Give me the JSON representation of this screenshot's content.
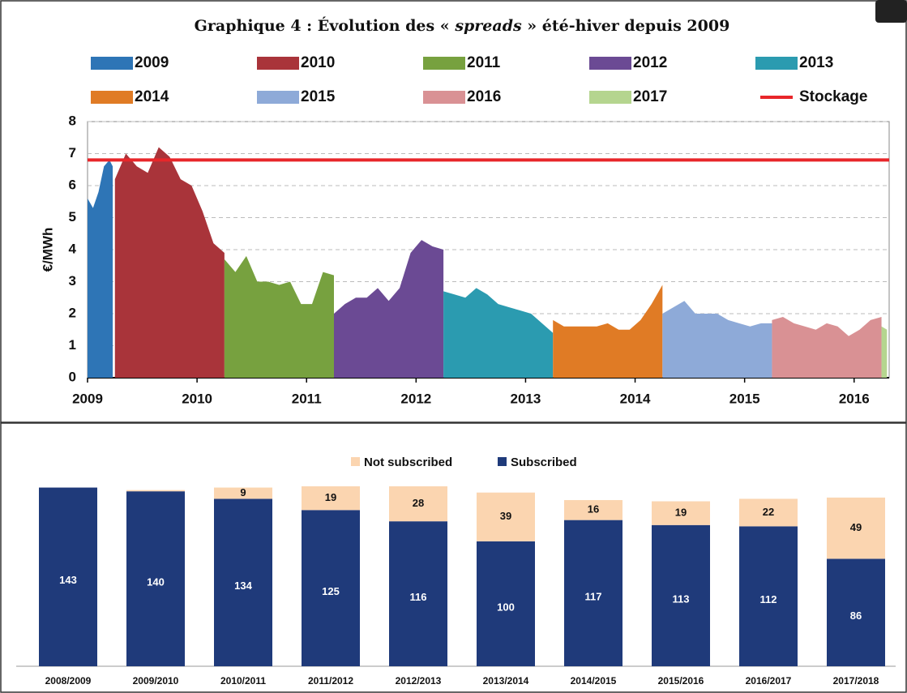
{
  "chart_data": [
    {
      "type": "area",
      "title_parts": [
        "Graphique 4 : Évolution des « ",
        "spreads",
        " » été-hiver depuis 2009"
      ],
      "y_label": "€/MWh",
      "xlim": [
        2009,
        2016.32
      ],
      "xticks": [
        2009,
        2010,
        2011,
        2012,
        2013,
        2014,
        2015,
        2016
      ],
      "ylim": [
        0,
        8
      ],
      "yticks": [
        0,
        1,
        2,
        3,
        4,
        5,
        6,
        7,
        8
      ],
      "grid": true,
      "series": [
        {
          "name": "2009",
          "color": "#2e75b6",
          "x": [
            2009.0,
            2009.05,
            2009.1,
            2009.15,
            2009.2,
            2009.23
          ],
          "values": [
            5.6,
            5.3,
            5.8,
            6.6,
            6.8,
            6.6
          ]
        },
        {
          "name": "2010",
          "color": "#a9343a",
          "x": [
            2009.25,
            2009.35,
            2009.45,
            2009.55,
            2009.65,
            2009.75,
            2009.85,
            2009.95,
            2010.05,
            2010.15,
            2010.25
          ],
          "values": [
            6.2,
            7.0,
            6.6,
            6.4,
            7.2,
            6.9,
            6.2,
            6.0,
            5.2,
            4.2,
            3.9
          ]
        },
        {
          "name": "2011",
          "color": "#77a13f",
          "x": [
            2010.25,
            2010.35,
            2010.45,
            2010.55,
            2010.65,
            2010.75,
            2010.85,
            2010.95,
            2011.05,
            2011.15,
            2011.25
          ],
          "values": [
            3.7,
            3.3,
            3.8,
            3.0,
            3.0,
            2.9,
            3.0,
            2.3,
            2.3,
            3.3,
            3.2
          ]
        },
        {
          "name": "2012",
          "color": "#6b4a94",
          "x": [
            2011.25,
            2011.35,
            2011.45,
            2011.55,
            2011.65,
            2011.75,
            2011.85,
            2011.95,
            2012.05,
            2012.15,
            2012.25
          ],
          "values": [
            2.0,
            2.3,
            2.5,
            2.5,
            2.8,
            2.4,
            2.8,
            3.9,
            4.3,
            4.1,
            4.0
          ]
        },
        {
          "name": "2013",
          "color": "#2b9bb0",
          "x": [
            2012.25,
            2012.35,
            2012.45,
            2012.55,
            2012.65,
            2012.75,
            2012.85,
            2012.95,
            2013.05,
            2013.15,
            2013.25
          ],
          "values": [
            2.7,
            2.6,
            2.5,
            2.8,
            2.6,
            2.3,
            2.2,
            2.1,
            2.0,
            1.7,
            1.4
          ]
        },
        {
          "name": "2014",
          "color": "#e07b25",
          "x": [
            2013.25,
            2013.35,
            2013.45,
            2013.55,
            2013.65,
            2013.75,
            2013.85,
            2013.95,
            2014.05,
            2014.15,
            2014.25
          ],
          "values": [
            1.8,
            1.6,
            1.6,
            1.6,
            1.6,
            1.7,
            1.5,
            1.5,
            1.8,
            2.3,
            2.9
          ]
        },
        {
          "name": "2015",
          "color": "#8eaad8",
          "x": [
            2014.25,
            2014.35,
            2014.45,
            2014.55,
            2014.65,
            2014.75,
            2014.85,
            2014.95,
            2015.05,
            2015.15,
            2015.25
          ],
          "values": [
            2.0,
            2.2,
            2.4,
            2.0,
            2.0,
            2.0,
            1.8,
            1.7,
            1.6,
            1.7,
            1.7
          ]
        },
        {
          "name": "2016",
          "color": "#d99194",
          "x": [
            2015.25,
            2015.35,
            2015.45,
            2015.55,
            2015.65,
            2015.75,
            2015.85,
            2015.95,
            2016.05,
            2016.15,
            2016.25
          ],
          "values": [
            1.8,
            1.9,
            1.7,
            1.6,
            1.5,
            1.7,
            1.6,
            1.3,
            1.5,
            1.8,
            1.9
          ]
        },
        {
          "name": "2017",
          "color": "#b5d58f",
          "x": [
            2016.25,
            2016.3
          ],
          "values": [
            1.6,
            1.5
          ]
        },
        {
          "name": "Stockage",
          "color": "#e8262a",
          "kind": "line",
          "x": [
            2009,
            2016.32
          ],
          "values": [
            6.8,
            6.8
          ]
        }
      ]
    },
    {
      "type": "stacked-bar",
      "categories": [
        "2008/2009",
        "2009/2010",
        "2010/2011",
        "2011/2012",
        "2012/2013",
        "2013/2014",
        "2014/2015",
        "2015/2016",
        "2016/2017",
        "2017/2018"
      ],
      "series": [
        {
          "name": "Subscribed",
          "color": "#1f3a7a",
          "values": [
            143,
            140,
            134,
            125,
            116,
            100,
            117,
            113,
            112,
            86
          ]
        },
        {
          "name": "Not subscribed",
          "color": "#fbd5b0",
          "values": [
            0,
            1,
            9,
            19,
            28,
            39,
            16,
            19,
            22,
            49
          ]
        }
      ]
    }
  ]
}
